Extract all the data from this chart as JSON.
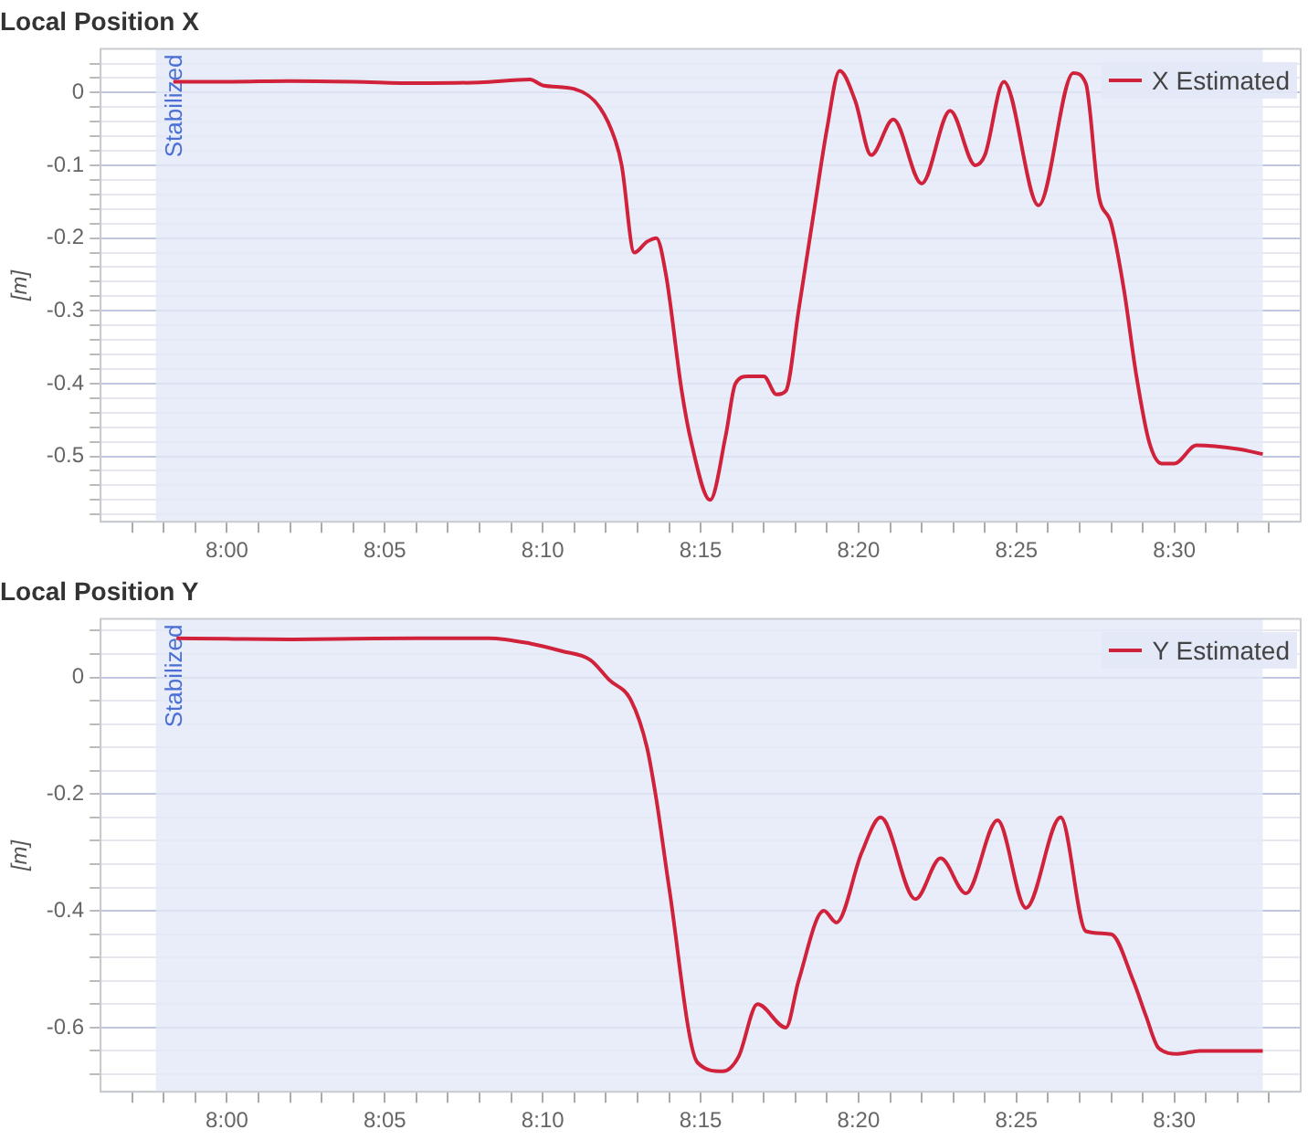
{
  "chart_data": [
    {
      "type": "line",
      "title": "Local Position X",
      "ylabel": "[m]",
      "legend": "top right",
      "grid": "y",
      "marker": "none",
      "line_style": "solid",
      "xlim": [
        476,
        514
      ],
      "xticks": [
        {
          "value": 477,
          "label": null
        },
        {
          "value": 478,
          "label": null
        },
        {
          "value": 479,
          "label": null
        },
        {
          "value": 480,
          "label": "8:00"
        },
        {
          "value": 481,
          "label": null
        },
        {
          "value": 482,
          "label": null
        },
        {
          "value": 483,
          "label": null
        },
        {
          "value": 484,
          "label": null
        },
        {
          "value": 485,
          "label": "8:05"
        },
        {
          "value": 486,
          "label": null
        },
        {
          "value": 487,
          "label": null
        },
        {
          "value": 488,
          "label": null
        },
        {
          "value": 489,
          "label": null
        },
        {
          "value": 490,
          "label": "8:10"
        },
        {
          "value": 491,
          "label": null
        },
        {
          "value": 492,
          "label": null
        },
        {
          "value": 493,
          "label": null
        },
        {
          "value": 494,
          "label": null
        },
        {
          "value": 495,
          "label": "8:15"
        },
        {
          "value": 496,
          "label": null
        },
        {
          "value": 497,
          "label": null
        },
        {
          "value": 498,
          "label": null
        },
        {
          "value": 499,
          "label": null
        },
        {
          "value": 500,
          "label": "8:20"
        },
        {
          "value": 501,
          "label": null
        },
        {
          "value": 502,
          "label": null
        },
        {
          "value": 503,
          "label": null
        },
        {
          "value": 504,
          "label": null
        },
        {
          "value": 505,
          "label": "8:25"
        },
        {
          "value": 506,
          "label": null
        },
        {
          "value": 507,
          "label": null
        },
        {
          "value": 508,
          "label": null
        },
        {
          "value": 509,
          "label": null
        },
        {
          "value": 510,
          "label": "8:30"
        },
        {
          "value": 511,
          "label": null
        },
        {
          "value": 512,
          "label": null
        },
        {
          "value": 513,
          "label": null
        }
      ],
      "ylim": [
        -0.59,
        0.06
      ],
      "yticks": [
        {
          "value": -0.58,
          "label": null
        },
        {
          "value": -0.56,
          "label": null
        },
        {
          "value": -0.54,
          "label": null
        },
        {
          "value": -0.52,
          "label": null
        },
        -0.5,
        {
          "value": -0.48,
          "label": null
        },
        {
          "value": -0.46,
          "label": null
        },
        {
          "value": -0.44,
          "label": null
        },
        {
          "value": -0.42,
          "label": null
        },
        -0.4,
        {
          "value": -0.38,
          "label": null
        },
        {
          "value": -0.36,
          "label": null
        },
        {
          "value": -0.34,
          "label": null
        },
        {
          "value": -0.32,
          "label": null
        },
        -0.3,
        {
          "value": -0.28,
          "label": null
        },
        {
          "value": -0.26,
          "label": null
        },
        {
          "value": -0.24,
          "label": null
        },
        {
          "value": -0.22,
          "label": null
        },
        -0.2,
        {
          "value": -0.18,
          "label": null
        },
        {
          "value": -0.16,
          "label": null
        },
        {
          "value": -0.14,
          "label": null
        },
        {
          "value": -0.12,
          "label": null
        },
        -0.1,
        {
          "value": -0.08,
          "label": null
        },
        {
          "value": -0.06,
          "label": null
        },
        {
          "value": -0.04,
          "label": null
        },
        {
          "value": -0.02,
          "label": null
        },
        0,
        {
          "value": 0.02,
          "label": null
        },
        {
          "value": 0.04,
          "label": null
        }
      ],
      "bands": [
        {
          "axis": "x",
          "from": 477.75,
          "to": 512.8,
          "label": "Stabilized",
          "color": "#e3e8f7"
        }
      ],
      "series": [
        {
          "name": "X Estimated",
          "color": "#d0223a",
          "x": [
            478.3,
            480,
            482,
            484,
            486,
            488,
            489.6,
            490.0,
            491.0,
            491.8,
            492.3,
            492.5,
            492.9,
            493.3,
            493.6,
            493.9,
            494.4,
            494.7,
            495.3,
            495.8,
            496.1,
            496.5,
            497.0,
            497.4,
            497.7,
            498.1,
            498.6,
            499.0,
            499.4,
            499.9,
            500.4,
            501.1,
            502.0,
            502.9,
            503.7,
            504.0,
            504.6,
            505.7,
            506.8,
            507.2,
            507.6,
            508.0,
            508.4,
            508.8,
            509.2,
            509.6,
            510.0,
            510.7,
            512.0,
            512.8
          ],
          "values": [
            0.015,
            0.015,
            0.016,
            0.015,
            0.013,
            0.014,
            0.018,
            0.01,
            0.005,
            -0.02,
            -0.066,
            -0.1,
            -0.22,
            -0.205,
            -0.2,
            -0.25,
            -0.41,
            -0.48,
            -0.56,
            -0.47,
            -0.4,
            -0.39,
            -0.39,
            -0.415,
            -0.41,
            -0.3,
            -0.16,
            -0.05,
            0.03,
            -0.012,
            -0.086,
            -0.037,
            -0.125,
            -0.025,
            -0.1,
            -0.086,
            0.015,
            -0.155,
            0.027,
            0.012,
            -0.14,
            -0.18,
            -0.27,
            -0.39,
            -0.48,
            -0.51,
            -0.51,
            -0.485,
            -0.49,
            -0.497
          ]
        }
      ]
    },
    {
      "type": "line",
      "title": "Local Position Y",
      "ylabel": "[m]",
      "legend": "top right",
      "grid": "y",
      "marker": "none",
      "line_style": "solid",
      "xlim": [
        476,
        514
      ],
      "xticks": [
        {
          "value": 477,
          "label": null
        },
        {
          "value": 478,
          "label": null
        },
        {
          "value": 479,
          "label": null
        },
        {
          "value": 480,
          "label": "8:00"
        },
        {
          "value": 481,
          "label": null
        },
        {
          "value": 482,
          "label": null
        },
        {
          "value": 483,
          "label": null
        },
        {
          "value": 484,
          "label": null
        },
        {
          "value": 485,
          "label": "8:05"
        },
        {
          "value": 486,
          "label": null
        },
        {
          "value": 487,
          "label": null
        },
        {
          "value": 488,
          "label": null
        },
        {
          "value": 489,
          "label": null
        },
        {
          "value": 490,
          "label": "8:10"
        },
        {
          "value": 491,
          "label": null
        },
        {
          "value": 492,
          "label": null
        },
        {
          "value": 493,
          "label": null
        },
        {
          "value": 494,
          "label": null
        },
        {
          "value": 495,
          "label": "8:15"
        },
        {
          "value": 496,
          "label": null
        },
        {
          "value": 497,
          "label": null
        },
        {
          "value": 498,
          "label": null
        },
        {
          "value": 499,
          "label": null
        },
        {
          "value": 500,
          "label": "8:20"
        },
        {
          "value": 501,
          "label": null
        },
        {
          "value": 502,
          "label": null
        },
        {
          "value": 503,
          "label": null
        },
        {
          "value": 504,
          "label": null
        },
        {
          "value": 505,
          "label": "8:25"
        },
        {
          "value": 506,
          "label": null
        },
        {
          "value": 507,
          "label": null
        },
        {
          "value": 508,
          "label": null
        },
        {
          "value": 509,
          "label": null
        },
        {
          "value": 510,
          "label": "8:30"
        },
        {
          "value": 511,
          "label": null
        },
        {
          "value": 512,
          "label": null
        },
        {
          "value": 513,
          "label": null
        }
      ],
      "ylim": [
        -0.71,
        0.1
      ],
      "yticks": [
        {
          "value": -0.68,
          "label": null
        },
        {
          "value": -0.64,
          "label": null
        },
        -0.6,
        {
          "value": -0.56,
          "label": null
        },
        {
          "value": -0.52,
          "label": null
        },
        {
          "value": -0.48,
          "label": null
        },
        {
          "value": -0.44,
          "label": null
        },
        -0.4,
        {
          "value": -0.36,
          "label": null
        },
        {
          "value": -0.32,
          "label": null
        },
        {
          "value": -0.28,
          "label": null
        },
        {
          "value": -0.24,
          "label": null
        },
        -0.2,
        {
          "value": -0.16,
          "label": null
        },
        {
          "value": -0.12,
          "label": null
        },
        {
          "value": -0.08,
          "label": null
        },
        {
          "value": -0.04,
          "label": null
        },
        0,
        {
          "value": 0.04,
          "label": null
        },
        {
          "value": 0.08,
          "label": null
        }
      ],
      "bands": [
        {
          "axis": "x",
          "from": 477.75,
          "to": 512.8,
          "label": "Stabilized",
          "color": "#e3e8f7"
        }
      ],
      "series": [
        {
          "name": "Y Estimated",
          "color": "#d0223a",
          "x": [
            478.4,
            480,
            482,
            484,
            486,
            488.3,
            489.6,
            490.6,
            491.5,
            492.1,
            492.8,
            493.3,
            493.6,
            494.0,
            494.9,
            495.7,
            496.2,
            496.8,
            497.7,
            498.1,
            498.9,
            499.3,
            500.1,
            500.7,
            501.8,
            502.6,
            503.4,
            504.4,
            505.3,
            506.4,
            507.2,
            508.0,
            508.7,
            509.1,
            509.5,
            510.1,
            510.8,
            512.8
          ],
          "values": [
            0.067,
            0.066,
            0.065,
            0.066,
            0.067,
            0.067,
            0.058,
            0.045,
            0.03,
            -0.004,
            -0.04,
            -0.12,
            -0.21,
            -0.36,
            -0.66,
            -0.675,
            -0.65,
            -0.56,
            -0.6,
            -0.52,
            -0.4,
            -0.42,
            -0.3,
            -0.24,
            -0.38,
            -0.31,
            -0.37,
            -0.245,
            -0.395,
            -0.24,
            -0.435,
            -0.44,
            -0.52,
            -0.58,
            -0.635,
            -0.645,
            -0.64,
            -0.64
          ]
        }
      ]
    }
  ]
}
